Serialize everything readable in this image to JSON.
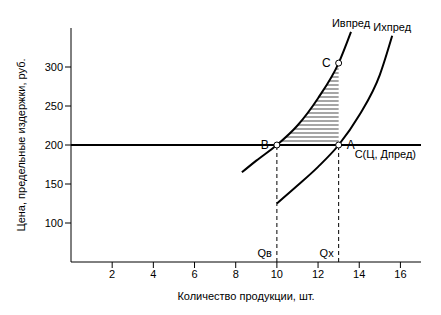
{
  "chart_data": {
    "type": "line",
    "x_label": "Количество продукции, шт.",
    "y_label": "Цена, предельные издержки, руб.",
    "xlim": [
      0,
      17
    ],
    "xticks": [
      2,
      4,
      6,
      8,
      10,
      12,
      14,
      16
    ],
    "ylim": [
      50,
      350
    ],
    "yticks": [
      100,
      150,
      200,
      250,
      300
    ],
    "grid": false,
    "series": [
      {
        "name": "Ивпред",
        "color": "#000000",
        "x": [
          8.3,
          9,
          10,
          11,
          12,
          13,
          13.6
        ],
        "values": [
          165,
          180,
          200,
          225,
          260,
          305,
          345
        ]
      },
      {
        "name": "Ихпред",
        "color": "#000000",
        "x": [
          10,
          11,
          12,
          13,
          14,
          15,
          15.6
        ],
        "values": [
          125,
          148,
          172,
          200,
          238,
          290,
          340
        ]
      }
    ],
    "hline": {
      "y": 200,
      "label": "C(Ц, Дпред)"
    },
    "vlines": [
      {
        "x": 10,
        "label": "Qв"
      },
      {
        "x": 13,
        "label": "Qх"
      }
    ],
    "points": [
      {
        "label": "A",
        "x": 13,
        "y": 200
      },
      {
        "label": "B",
        "x": 10,
        "y": 200
      },
      {
        "label": "C",
        "x": 13,
        "y": 305
      }
    ],
    "shaded": {
      "from": 10,
      "to": 13
    }
  }
}
